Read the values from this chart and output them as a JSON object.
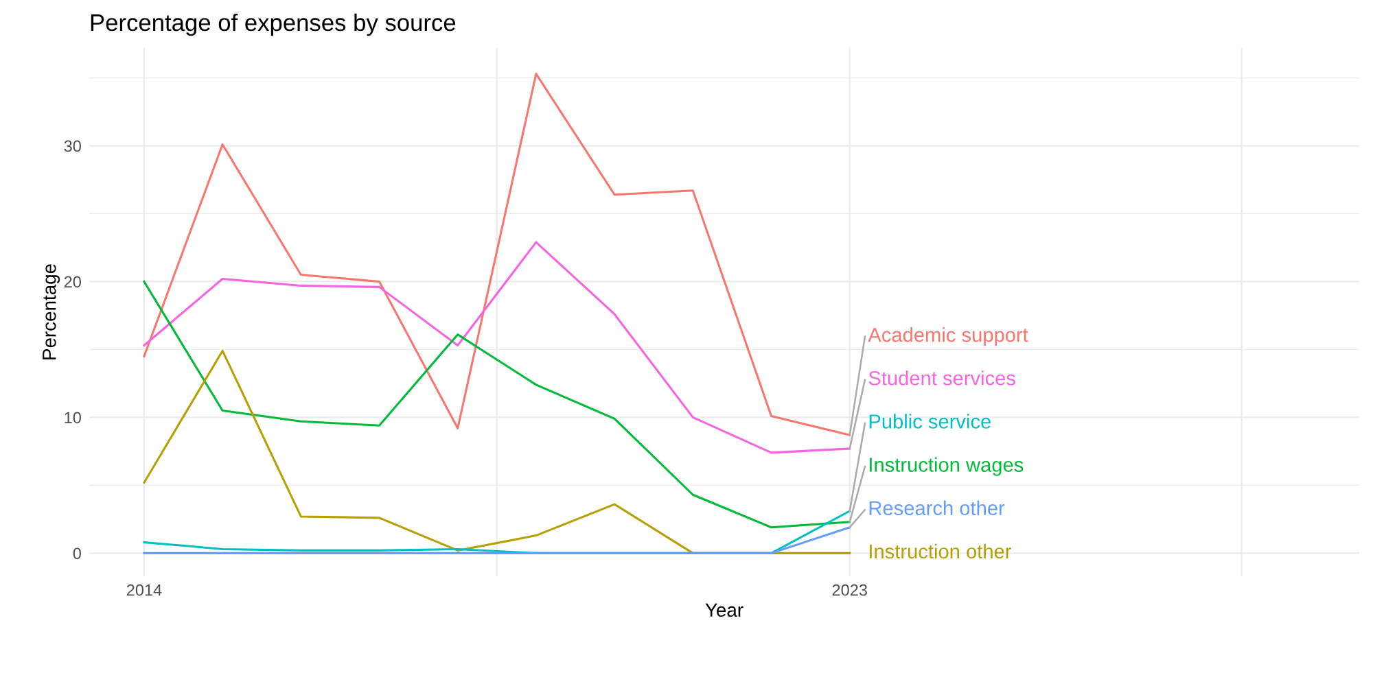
{
  "chart_data": {
    "type": "line",
    "title": "Percentage of expenses by source",
    "xlabel": "Year",
    "ylabel": "Percentage",
    "x": [
      2014,
      2015,
      2016,
      2017,
      2018,
      2019,
      2020,
      2021,
      2022,
      2023
    ],
    "series": [
      {
        "name": "Academic support",
        "color": "#f8766d",
        "values": [
          14.5,
          30.1,
          20.5,
          20.0,
          9.2,
          35.3,
          26.4,
          26.7,
          10.1,
          8.7
        ]
      },
      {
        "name": "Student services",
        "color": "#f564e3",
        "values": [
          15.3,
          20.2,
          19.7,
          19.6,
          15.3,
          22.9,
          17.6,
          10.0,
          7.4,
          7.7
        ]
      },
      {
        "name": "Instruction wages",
        "color": "#00ba38",
        "values": [
          20.0,
          10.5,
          9.7,
          9.4,
          16.1,
          12.4,
          9.9,
          4.3,
          1.9,
          2.3
        ]
      },
      {
        "name": "Instruction other",
        "color": "#b79f00",
        "values": [
          5.2,
          14.9,
          2.7,
          2.6,
          0.2,
          1.3,
          3.6,
          0.0,
          0.0,
          0.0
        ]
      },
      {
        "name": "Public service",
        "color": "#00bfc4",
        "values": [
          0.8,
          0.3,
          0.2,
          0.2,
          0.3,
          0.0,
          0.0,
          0.0,
          0.0,
          3.1
        ]
      },
      {
        "name": "Research other",
        "color": "#619cff",
        "values": [
          0.0,
          0.0,
          0.0,
          0.0,
          0.0,
          0.0,
          0.0,
          0.0,
          0.0,
          1.9
        ]
      }
    ],
    "xlim": [
      2013.3,
      2029.5
    ],
    "xticks": [
      2014,
      {
        "value": 2018.5,
        "label": null
      },
      2023,
      {
        "value": 2028,
        "label": null
      }
    ],
    "ylim": [
      -1.7,
      37.2
    ],
    "yticks": [
      0,
      10,
      20,
      30
    ],
    "grid": true,
    "legend": false,
    "line_style": "solid",
    "marker": "none"
  }
}
